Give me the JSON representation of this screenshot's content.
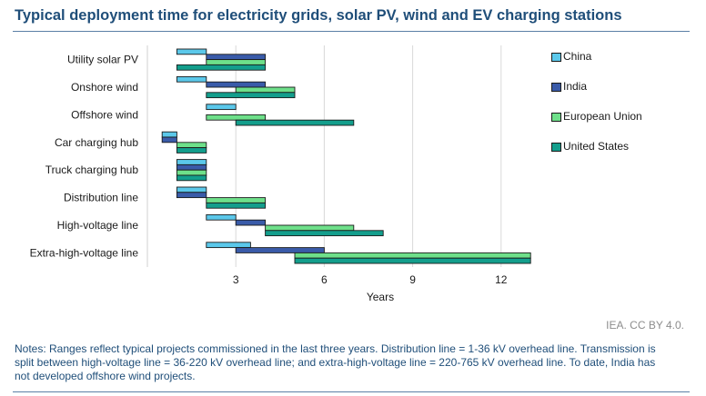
{
  "title": "Typical deployment time for electricity grids, solar PV, wind and EV charging stations",
  "credit": "IEA. CC BY 4.0.",
  "notes": "Notes: Ranges reflect typical projects commissioned in the last three years. Distribution line = 1-36 kV overhead line. Transmission is split between high-voltage line = 36-220 kV overhead line; and extra-high-voltage line = 220-765 kV overhead line. To date, India has not developed offshore wind projects.",
  "colors": {
    "China": "#5bc8ea",
    "India": "#3a5ba9",
    "European Union": "#6ee08a",
    "United States": "#139e8c",
    "grid": "#d9d9d9",
    "axis_text": "#1a1a1a"
  },
  "chart_data": {
    "type": "bar",
    "orientation": "horizontal-range",
    "xlabel": "Years",
    "ylabel": "",
    "xlim": [
      0,
      14
    ],
    "xticks": [
      3,
      6,
      9,
      12
    ],
    "grid": true,
    "legend_position": "right",
    "categories": [
      "Utility solar PV",
      "Onshore wind",
      "Offshore wind",
      "Car charging hub",
      "Truck charging hub",
      "Distribution line",
      "High-voltage line",
      "Extra-high-voltage line"
    ],
    "series": [
      {
        "name": "China",
        "ranges": [
          [
            1,
            2
          ],
          [
            1,
            2
          ],
          [
            2,
            3
          ],
          [
            0.5,
            1
          ],
          [
            1,
            2
          ],
          [
            1,
            2
          ],
          [
            2,
            3
          ],
          [
            2,
            3.5
          ]
        ]
      },
      {
        "name": "India",
        "ranges": [
          [
            2,
            4
          ],
          [
            2,
            4
          ],
          null,
          [
            0.5,
            1
          ],
          [
            1,
            2
          ],
          [
            1,
            2
          ],
          [
            3,
            4
          ],
          [
            3,
            6
          ]
        ]
      },
      {
        "name": "European Union",
        "ranges": [
          [
            2,
            4
          ],
          [
            3,
            5
          ],
          [
            2,
            4
          ],
          [
            1,
            2
          ],
          [
            1,
            2
          ],
          [
            2,
            4
          ],
          [
            4,
            7
          ],
          [
            5,
            13
          ]
        ]
      },
      {
        "name": "United States",
        "ranges": [
          [
            1,
            4
          ],
          [
            2,
            5
          ],
          [
            3,
            7
          ],
          [
            1,
            2
          ],
          [
            1,
            2
          ],
          [
            2,
            4
          ],
          [
            4,
            8
          ],
          [
            5,
            13
          ]
        ]
      }
    ]
  }
}
